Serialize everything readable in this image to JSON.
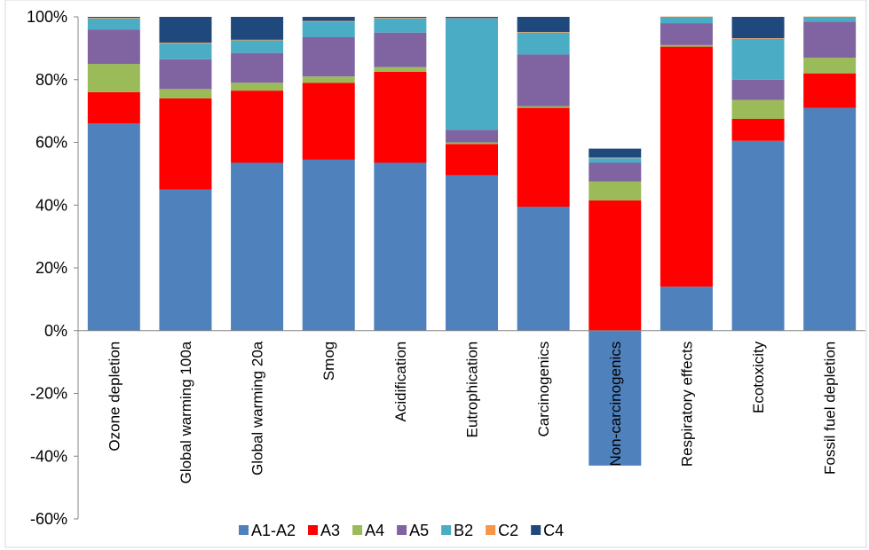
{
  "chart_data": {
    "type": "bar",
    "stacked": true,
    "ylim": [
      -60,
      100
    ],
    "y_ticks": [
      100,
      80,
      60,
      40,
      20,
      0,
      -20,
      -40,
      -60
    ],
    "y_tick_labels": [
      "100%",
      "80%",
      "60%",
      "40%",
      "20%",
      "0%",
      "-20%",
      "-40%",
      "-60%"
    ],
    "grid": false,
    "legend_position": "bottom",
    "categories": [
      "Ozone depletion",
      "Global warming 100a",
      "Global warming 20a",
      "Smog",
      "Acidification",
      "Eutrophication",
      "Carcinogenics",
      "Non-carcinogenics",
      "Respiratory effects",
      "Ecotoxicity",
      "Fossil fuel depletion"
    ],
    "series": [
      {
        "name": "A1-A2",
        "color": "#4F81BD",
        "values": [
          66,
          45,
          53.5,
          54.5,
          53.5,
          49.5,
          39.5,
          -43,
          14,
          60.5,
          71
        ]
      },
      {
        "name": "A3",
        "color": "#FF0000",
        "values": [
          10,
          29,
          23,
          24.5,
          29,
          10,
          31.5,
          41.5,
          76.5,
          7,
          11
        ]
      },
      {
        "name": "A4",
        "color": "#9BBB59",
        "values": [
          9,
          3,
          2.5,
          2,
          1.5,
          0.5,
          0.5,
          6,
          0.5,
          6,
          5
        ]
      },
      {
        "name": "A5",
        "color": "#8064A2",
        "values": [
          11,
          9.5,
          9.5,
          12.5,
          11,
          4,
          16.5,
          6,
          7,
          6.5,
          11.5
        ]
      },
      {
        "name": "B2",
        "color": "#4BACC6",
        "values": [
          3.5,
          5,
          4,
          5,
          4.5,
          35.5,
          7,
          1.5,
          2,
          13,
          1.5
        ]
      },
      {
        "name": "C2",
        "color": "#F79646",
        "values": [
          0.2,
          0.3,
          0.2,
          0.2,
          0.2,
          0.1,
          0.2,
          0.2,
          0.1,
          0.2,
          0.1
        ]
      },
      {
        "name": "C4",
        "color": "#1F497D",
        "values": [
          0.3,
          8.2,
          7.3,
          1.3,
          0.3,
          0.4,
          4.8,
          2.8,
          0,
          6.8,
          0
        ]
      }
    ]
  }
}
